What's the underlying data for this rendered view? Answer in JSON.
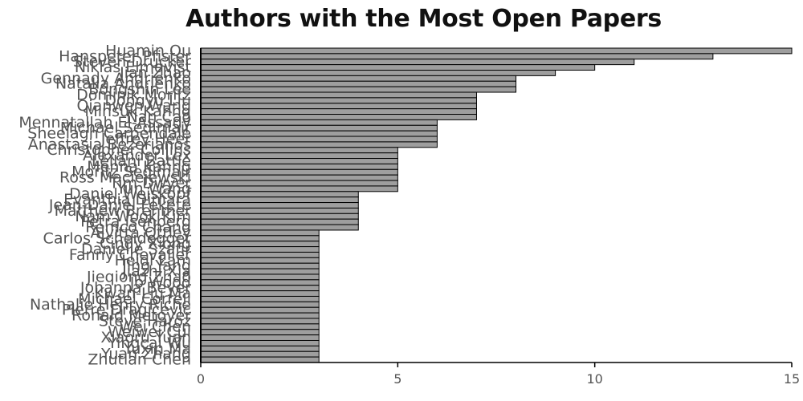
{
  "chart_data": {
    "type": "bar",
    "orientation": "horizontal",
    "title": "Authors with the Most Open Papers",
    "xlabel": "",
    "ylabel": "",
    "xlim": [
      0,
      15
    ],
    "xticks": [
      0,
      5,
      10,
      15
    ],
    "grid": false,
    "bar_color": "#9e9e9e",
    "bar_edge_color": "#000000",
    "categories": [
      "Huamin Qu",
      "Hanspeter Pfister",
      "Steven Drucker",
      "Niklas Elmqvist",
      "Jian Zhao",
      "Gennady Andrienko",
      "Natalia Andrienko",
      "Bongshin Lee",
      "Dominik Moritz",
      "Dongyu Liu",
      "Qianwen Wang",
      "Minsuk Kahng",
      "Nan Cao",
      "Mennatallah El-Assady",
      "Michael Sedlmair",
      "Sheelagh Carpendale",
      "Jeffrey Heer",
      "Anastasia Bezerianos",
      "Christopher Collins",
      "Alexander Lex",
      "Leilani Battle",
      "Menna Kahng",
      "Moritz Sedlmair",
      "Ross Maciejewski",
      "Tim Dwyer",
      "Yun Wang",
      "Daniel Weiskopf",
      "Evanthia Dimara",
      "Jean-Daniel Fekete",
      "Matthew Brehmer",
      "Nam Wook Kim",
      "Petra Isenberg",
      "Remco Chang",
      "Alvitta Ottley",
      "Carlos Scheidegger",
      "Cindy Xiong",
      "Danielle Szafir",
      "Fanny Chevalier",
      "Heidi Lam",
      "Jing Yang",
      "Jiazhi Xia",
      "Jieqiong Zhao",
      "Jo Wood",
      "Johanna Beyer",
      "Kwan-Liu Ma",
      "Michael Correll",
      "Nathalie Henry Riche",
      "Pierre Dragicevic",
      "Ronald Metoyer",
      "Steve Haroz",
      "Wei Chen",
      "Weiwei Cui",
      "Xiaoru Yuan",
      "Yingcai Wu",
      "Yuxin Ma",
      "Yuan Zhang",
      "Zhutian Chen"
    ],
    "values": [
      15,
      13,
      11,
      10,
      9,
      8,
      8,
      8,
      7,
      7,
      7,
      7,
      7,
      6,
      6,
      6,
      6,
      6,
      5,
      5,
      5,
      5,
      5,
      5,
      5,
      5,
      4,
      4,
      4,
      4,
      4,
      4,
      4,
      3,
      3,
      3,
      3,
      3,
      3,
      3,
      3,
      3,
      3,
      3,
      3,
      3,
      3,
      3,
      3,
      3,
      3,
      3,
      3,
      3,
      3,
      3,
      3
    ]
  }
}
